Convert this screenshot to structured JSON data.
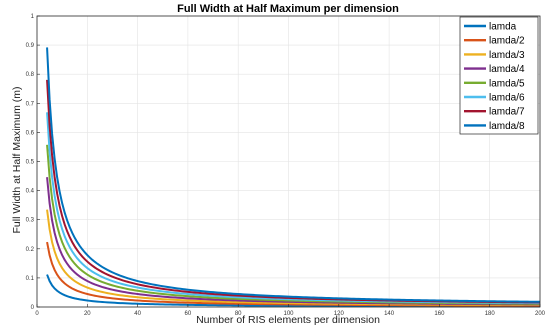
{
  "chart_data": {
    "type": "line",
    "title": "Full Width at Half Maximum per dimension",
    "xlabel": "Number of RIS elements per dimension",
    "ylabel": "Full Width at Half Maximum (m)",
    "xlim": [
      0,
      200
    ],
    "ylim": [
      0,
      1
    ],
    "xticks": [
      0,
      20,
      40,
      60,
      80,
      100,
      120,
      140,
      160,
      180,
      200
    ],
    "yticks": [
      0,
      0.1,
      0.2,
      0.3,
      0.4,
      0.5,
      0.6,
      0.7,
      0.8,
      0.9,
      1
    ],
    "grid": true,
    "legend_position": "top-right",
    "x_start": 4,
    "x_end": 200,
    "series": [
      {
        "name": "lamda",
        "color": "#0072BD",
        "k": 0.446,
        "value_at_x4": 0.112
      },
      {
        "name": "lamda/2",
        "color": "#D95319",
        "k": 0.892,
        "value_at_x4": 0.223
      },
      {
        "name": "lamda/3",
        "color": "#EDB120",
        "k": 1.338,
        "value_at_x4": 0.335
      },
      {
        "name": "lamda/4",
        "color": "#7E2F8E",
        "k": 1.784,
        "value_at_x4": 0.446
      },
      {
        "name": "lamda/5",
        "color": "#77AC30",
        "k": 2.23,
        "value_at_x4": 0.558
      },
      {
        "name": "lamda/6",
        "color": "#4DBEEE",
        "k": 2.676,
        "value_at_x4": 0.669
      },
      {
        "name": "lamda/7",
        "color": "#A2142F",
        "k": 3.122,
        "value_at_x4": 0.781
      },
      {
        "name": "lamda/8",
        "color": "#0072BD",
        "k": 3.568,
        "value_at_x4": 0.892
      }
    ]
  }
}
